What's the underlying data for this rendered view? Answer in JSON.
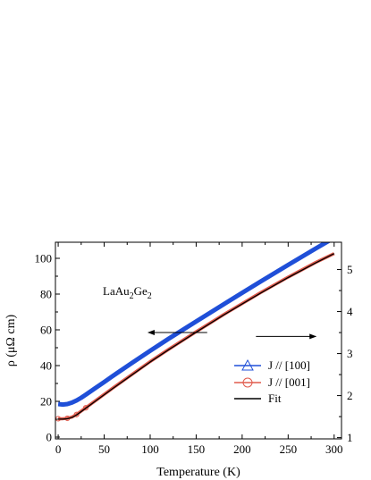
{
  "chart_data": {
    "type": "line",
    "title": "",
    "xlabel": "Temperature (K)",
    "ylabel": "ρ (μΩ cm)",
    "xlim": [
      -3,
      308
    ],
    "ylim": [
      -1,
      109
    ],
    "y2lim": [
      0.97,
      5.65
    ],
    "xticks": [
      0,
      50,
      100,
      150,
      200,
      250,
      300
    ],
    "yticks": [
      0,
      20,
      40,
      60,
      80,
      100
    ],
    "y2ticks": [
      1,
      2,
      3,
      4,
      5
    ],
    "grid": false,
    "legend": {
      "placement": "lower-right",
      "entries": [
        "J // [100]",
        "J // [001]",
        "Fit"
      ]
    },
    "annotations": {
      "compound_base": "LaAu",
      "sub1": "2",
      "compound_mid": "Ge",
      "sub2": "2",
      "left_arrow": {
        "from": [
          162,
          58.5
        ],
        "to": [
          98,
          58.5
        ],
        "axis": "left"
      },
      "right_arrow": {
        "from": [
          215,
          56.3
        ],
        "to": [
          280,
          56.3
        ],
        "axis": "left"
      }
    },
    "series": [
      {
        "name": "J // [100]",
        "axis": "left",
        "color": "#1f4fd8",
        "marker": "triangle",
        "x": [
          0,
          5,
          10,
          15,
          20,
          25,
          30,
          40,
          50,
          60,
          80,
          100,
          120,
          150,
          180,
          200,
          220,
          250,
          280,
          300
        ],
        "y": [
          18.5,
          18.2,
          18.5,
          19.3,
          20.5,
          22.0,
          23.7,
          27.3,
          30.8,
          34.4,
          41.4,
          48.3,
          55.0,
          64.7,
          74.3,
          80.7,
          87.0,
          96.3,
          105.5,
          111.5
        ]
      },
      {
        "name": "J // [001]",
        "axis": "right",
        "color": "#e05a4c",
        "marker": "circle",
        "x": [
          0,
          5,
          10,
          15,
          20,
          25,
          30,
          40,
          50,
          60,
          80,
          100,
          120,
          150,
          180,
          200,
          220,
          250,
          280,
          300
        ],
        "y": [
          1.45,
          1.45,
          1.46,
          1.49,
          1.55,
          1.63,
          1.71,
          1.87,
          2.03,
          2.19,
          2.5,
          2.81,
          3.1,
          3.52,
          3.93,
          4.19,
          4.45,
          4.82,
          5.17,
          5.38
        ]
      },
      {
        "name": "Fit",
        "axis": "right",
        "color": "#000000",
        "marker": "none",
        "x": [
          0,
          5,
          10,
          15,
          20,
          25,
          30,
          40,
          50,
          60,
          80,
          100,
          120,
          150,
          180,
          200,
          220,
          250,
          280,
          300
        ],
        "y": [
          1.44,
          1.44,
          1.45,
          1.48,
          1.54,
          1.62,
          1.7,
          1.86,
          2.02,
          2.18,
          2.49,
          2.8,
          3.09,
          3.51,
          3.92,
          4.18,
          4.44,
          4.81,
          5.16,
          5.38
        ]
      }
    ]
  }
}
